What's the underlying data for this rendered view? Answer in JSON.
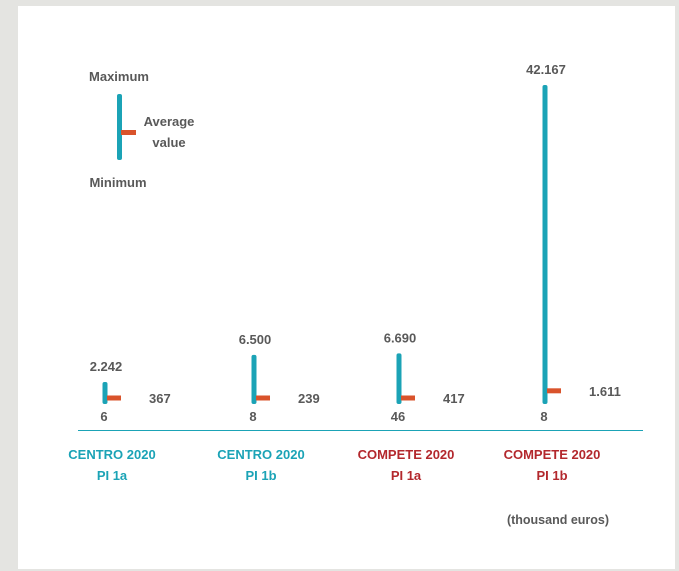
{
  "colors": {
    "range_bar": "#1ba3b6",
    "average_mark": "#d9532b",
    "text": "#595959",
    "centro_label": "#1ba3b6",
    "compete_label": "#b3282d",
    "axis_line": "#1ba3b6",
    "background": "#e4e4e1"
  },
  "legend": {
    "maximum": "Maximum",
    "average_line1": "Average",
    "average_line2": "value",
    "minimum": "Minimum"
  },
  "unit_note": "(thousand euros)",
  "chart_data": {
    "type": "range",
    "series_order": [
      "maximum",
      "average",
      "minimum"
    ],
    "categories": [
      {
        "line1": "CENTRO 2020",
        "line2": "PI 1a",
        "group": "centro",
        "max": 2242,
        "avg": 367,
        "min": 6,
        "max_label": "2.242",
        "avg_label": "367",
        "min_label": "6"
      },
      {
        "line1": "CENTRO 2020",
        "line2": "PI 1b",
        "group": "centro",
        "max": 6500,
        "avg": 239,
        "min": 8,
        "max_label": "6.500",
        "avg_label": "239",
        "min_label": "8"
      },
      {
        "line1": "COMPETE 2020",
        "line2": "PI 1a",
        "group": "compete",
        "max": 6690,
        "avg": 417,
        "min": 46,
        "max_label": "6.690",
        "avg_label": "417",
        "min_label": "46"
      },
      {
        "line1": "COMPETE 2020",
        "line2": "PI 1b",
        "group": "compete",
        "max": 42167,
        "avg": 1611,
        "min": 8,
        "max_label": "42.167",
        "avg_label": "1.611",
        "min_label": "8"
      }
    ]
  }
}
